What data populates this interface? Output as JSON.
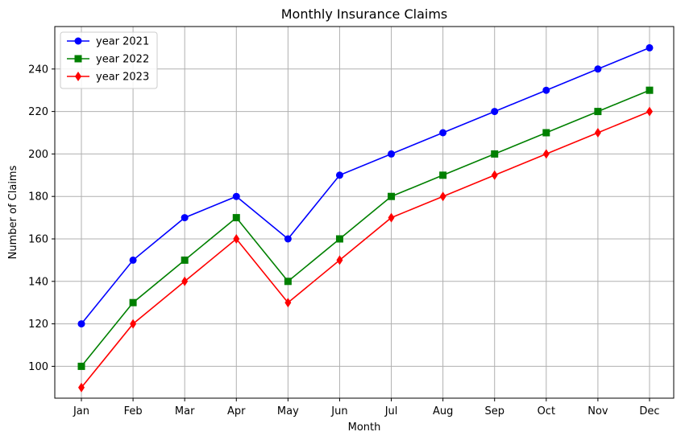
{
  "chart_data": {
    "type": "line",
    "title": "Monthly Insurance Claims",
    "xlabel": "Month",
    "ylabel": "Number of Claims",
    "categories": [
      "Jan",
      "Feb",
      "Mar",
      "Apr",
      "May",
      "Jun",
      "Jul",
      "Aug",
      "Sep",
      "Oct",
      "Nov",
      "Dec"
    ],
    "ylim": [
      85,
      260
    ],
    "yticks": [
      100,
      120,
      140,
      160,
      180,
      200,
      220,
      240
    ],
    "grid": true,
    "legend_position": "top-left",
    "series": [
      {
        "name": "year 2021",
        "color": "#0000ff",
        "marker": "circle",
        "values": [
          120,
          150,
          170,
          180,
          160,
          190,
          200,
          210,
          220,
          230,
          240,
          250
        ]
      },
      {
        "name": "year 2022",
        "color": "#008000",
        "marker": "square",
        "values": [
          100,
          130,
          150,
          170,
          140,
          160,
          180,
          190,
          200,
          210,
          220,
          230
        ]
      },
      {
        "name": "year 2023",
        "color": "#ff0000",
        "marker": "diamond",
        "values": [
          90,
          120,
          140,
          160,
          130,
          150,
          170,
          180,
          190,
          200,
          210,
          220
        ]
      }
    ]
  }
}
